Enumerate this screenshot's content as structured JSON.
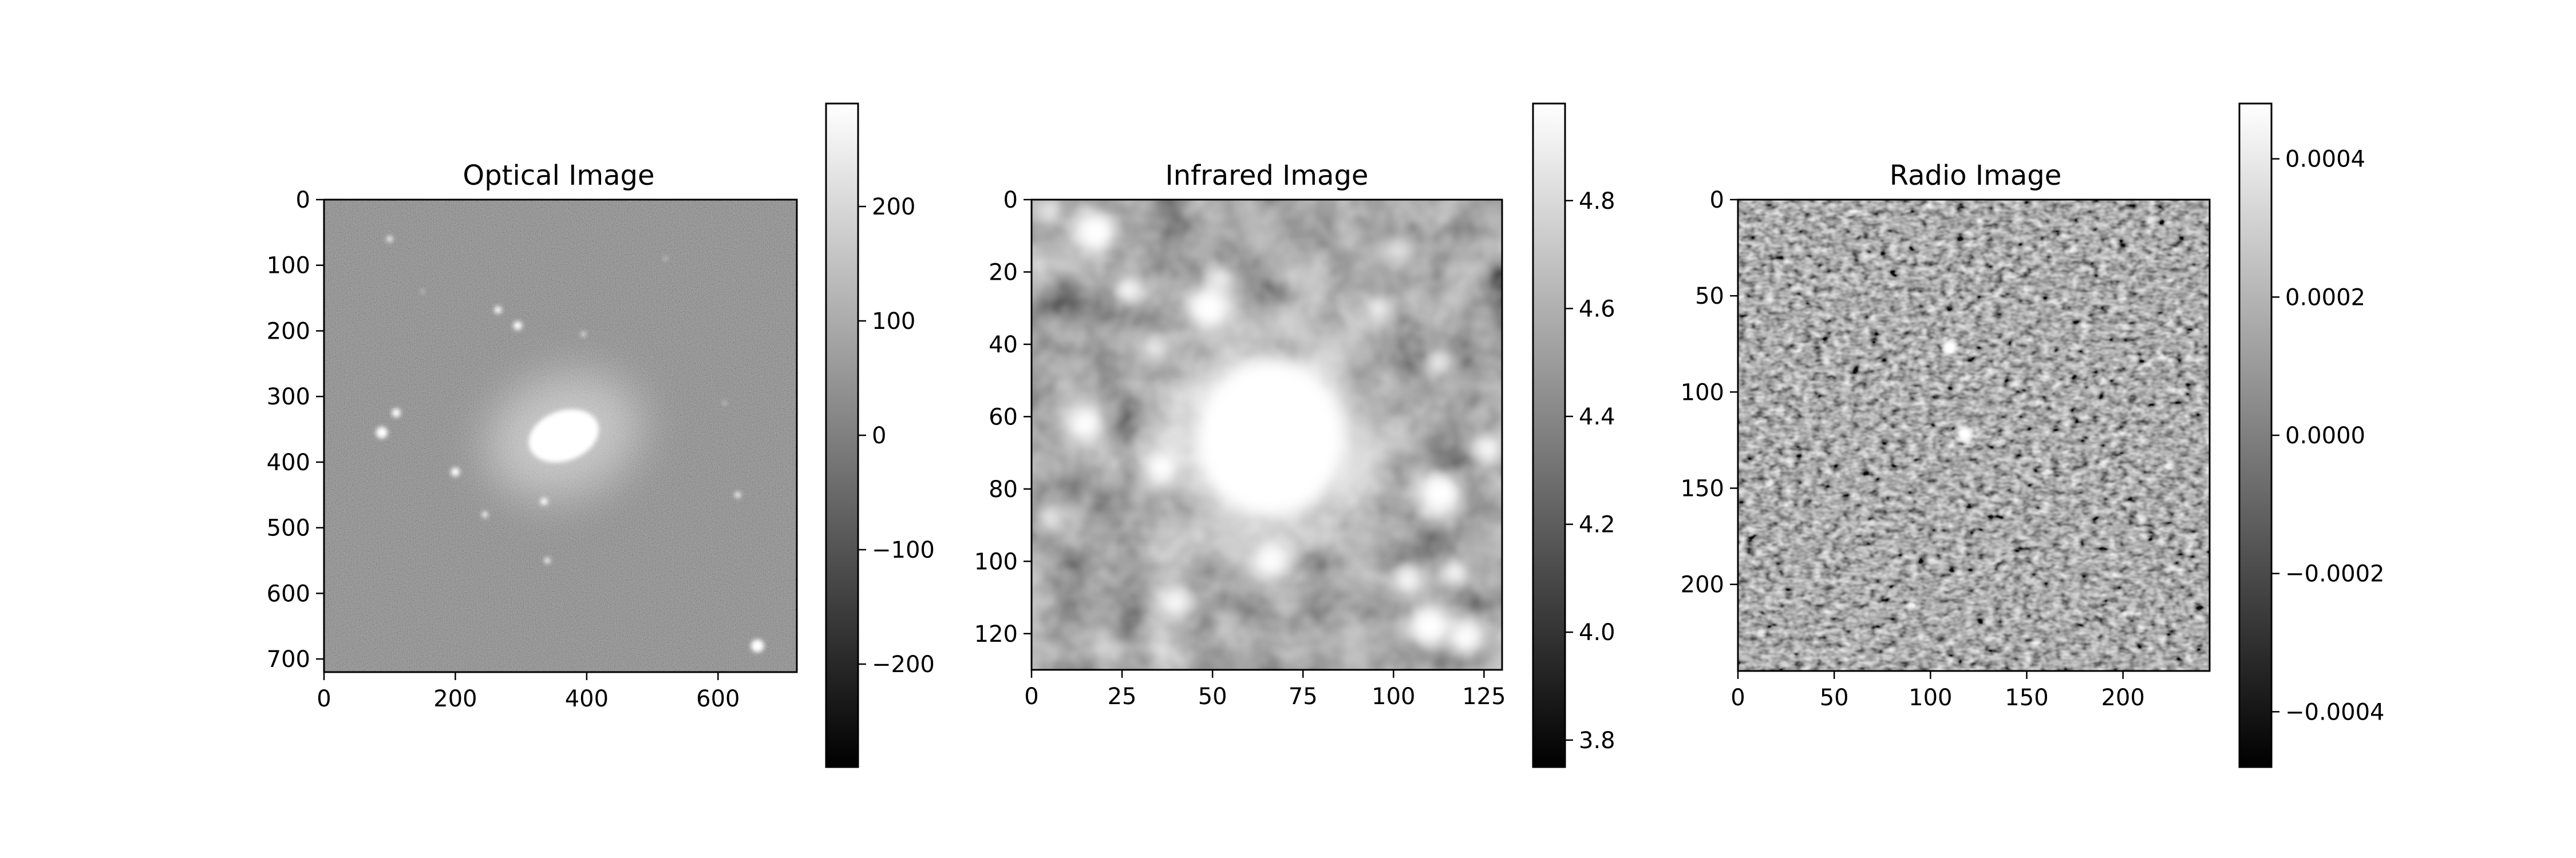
{
  "chart_data": [
    {
      "type": "heatmap",
      "title": "Optical Image",
      "x_ticks": [
        0,
        200,
        400,
        600
      ],
      "y_ticks": [
        0,
        100,
        200,
        300,
        400,
        500,
        600,
        700
      ],
      "xlim": [
        0,
        720
      ],
      "ylim": [
        720,
        0
      ],
      "colorbar": {
        "ticks": [
          200,
          100,
          0,
          -100,
          -200
        ],
        "tick_labels": [
          "200",
          "100",
          "0",
          "−100",
          "−200"
        ],
        "range": [
          -290,
          290
        ]
      },
      "colormap": "gray",
      "features": {
        "main_galaxy": {
          "x": 365,
          "y": 360,
          "rx": 55,
          "ry": 38,
          "angle_deg": -20
        },
        "stars": [
          [
            100,
            60,
            4
          ],
          [
            265,
            168,
            5
          ],
          [
            295,
            192,
            6
          ],
          [
            395,
            205,
            3
          ],
          [
            88,
            355,
            8
          ],
          [
            110,
            325,
            6
          ],
          [
            200,
            415,
            6
          ],
          [
            335,
            460,
            5
          ],
          [
            340,
            550,
            4
          ],
          [
            630,
            450,
            4
          ],
          [
            660,
            680,
            9
          ],
          [
            245,
            480,
            4
          ],
          [
            610,
            310,
            2
          ],
          [
            150,
            140,
            2
          ],
          [
            520,
            90,
            2
          ]
        ]
      }
    },
    {
      "type": "heatmap",
      "title": "Infrared Image",
      "x_ticks": [
        0,
        25,
        50,
        75,
        100,
        125
      ],
      "y_ticks": [
        0,
        20,
        40,
        60,
        80,
        100,
        120
      ],
      "xlim": [
        0,
        130
      ],
      "ylim": [
        130,
        0
      ],
      "colorbar": {
        "ticks": [
          4.8,
          4.6,
          4.4,
          4.2,
          4.0,
          3.8
        ],
        "tick_labels": [
          "4.8",
          "4.6",
          "4.4",
          "4.2",
          "4.0",
          "3.8"
        ],
        "range": [
          3.75,
          4.98
        ]
      },
      "colormap": "gray",
      "features": {
        "main_source": {
          "x": 66,
          "y": 66,
          "rx": 21,
          "ry": 22
        },
        "sources": [
          [
            18,
            9,
            6
          ],
          [
            5,
            3,
            3
          ],
          [
            27,
            25,
            4
          ],
          [
            49,
            30,
            6
          ],
          [
            34,
            41,
            3
          ],
          [
            15,
            62,
            5
          ],
          [
            36,
            74,
            5
          ],
          [
            66,
            100,
            5
          ],
          [
            40,
            111,
            4
          ],
          [
            102,
            14,
            3
          ],
          [
            96,
            30,
            3
          ],
          [
            112,
            45,
            3
          ],
          [
            113,
            81,
            6
          ],
          [
            126,
            69,
            4
          ],
          [
            104,
            105,
            4
          ],
          [
            117,
            103,
            4
          ],
          [
            110,
            118,
            6
          ],
          [
            120,
            121,
            5
          ],
          [
            5,
            88,
            3
          ],
          [
            52,
            22,
            3
          ]
        ]
      }
    },
    {
      "type": "heatmap",
      "title": "Radio Image",
      "x_ticks": [
        0,
        50,
        100,
        150,
        200
      ],
      "y_ticks": [
        0,
        50,
        100,
        150,
        200
      ],
      "xlim": [
        0,
        245
      ],
      "ylim": [
        245,
        0
      ],
      "colorbar": {
        "ticks": [
          0.0004,
          0.0002,
          0.0,
          -0.0002,
          -0.0004
        ],
        "tick_labels": [
          "0.0004",
          "0.0002",
          "0.0000",
          "−0.0002",
          "−0.0004"
        ],
        "range": [
          -0.00048,
          0.00048
        ]
      },
      "colormap": "gray",
      "features": {
        "point_sources": [
          [
            110,
            77,
            2
          ],
          [
            118,
            122,
            2
          ]
        ]
      }
    }
  ]
}
